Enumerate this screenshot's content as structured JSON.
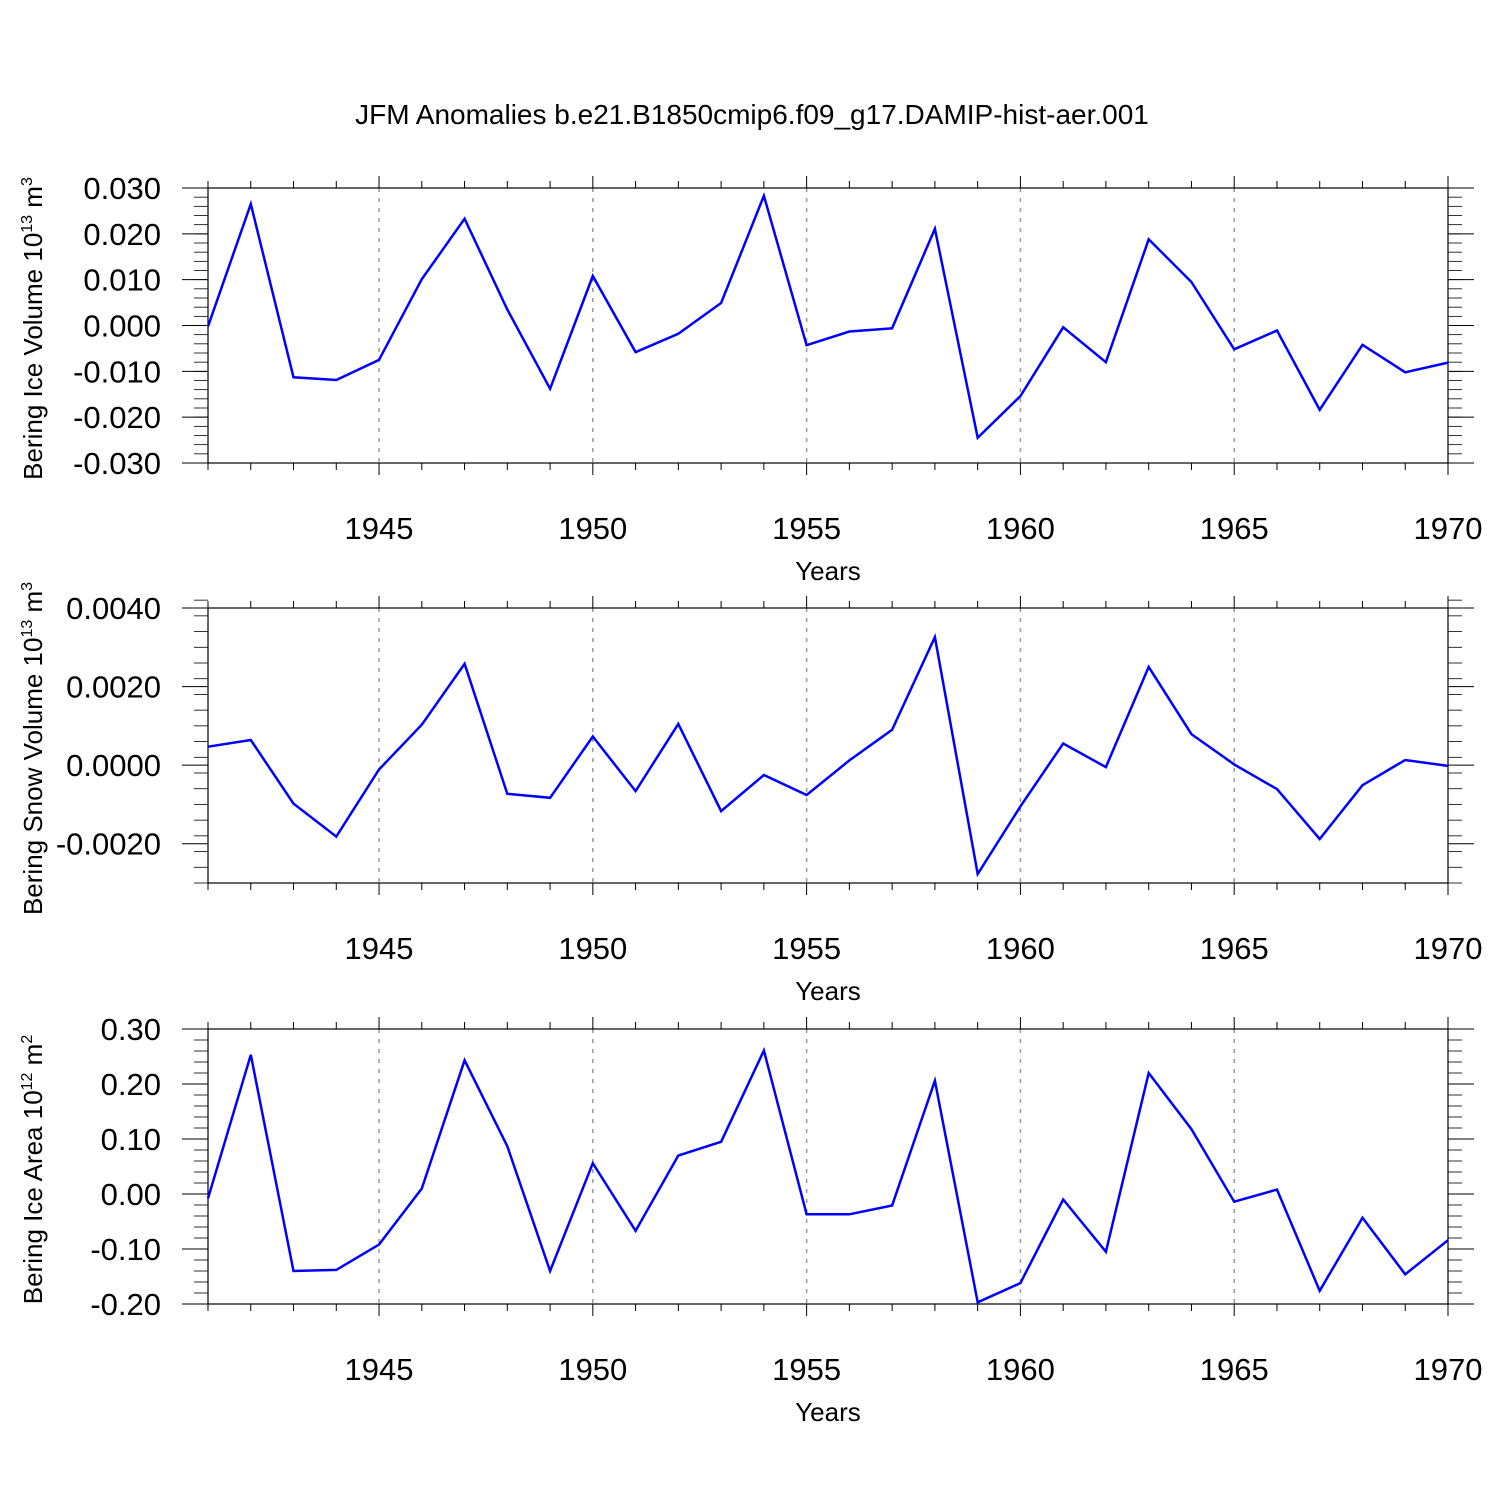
{
  "title": "JFM Anomalies b.e21.B1850cmip6.f09_g17.DAMIP-hist-aer.001",
  "line_color": "#0000ff",
  "grid_color": "#999999",
  "chart_data": [
    {
      "type": "line",
      "ylabel_main": "Bering Ice Volume 10",
      "ylabel_sup": "13",
      "ylabel_unit": " m",
      "ylabel_unit_sup": "3",
      "xlabel": "Years",
      "xlim": [
        1941,
        1970
      ],
      "ylim": [
        -0.03,
        0.03
      ],
      "yticks": [
        -0.03,
        -0.02,
        -0.01,
        0.0,
        0.01,
        0.02,
        0.03
      ],
      "ytick_labels": [
        "-0.030",
        "-0.020",
        "-0.010",
        "0.000",
        "0.010",
        "0.020",
        "0.030"
      ],
      "yminor_step": 0.002,
      "xticks": [
        1945,
        1950,
        1955,
        1960,
        1965,
        1970
      ],
      "xtick_labels": [
        "1945",
        "1950",
        "1955",
        "1960",
        "1965",
        "1970"
      ],
      "x": [
        1941,
        1942,
        1943,
        1944,
        1945,
        1946,
        1947,
        1948,
        1949,
        1950,
        1951,
        1952,
        1953,
        1954,
        1955,
        1956,
        1957,
        1958,
        1959,
        1960,
        1961,
        1962,
        1963,
        1964,
        1965,
        1966,
        1967,
        1968,
        1969,
        1970
      ],
      "values": [
        -0.0002,
        0.0265,
        -0.0113,
        -0.0119,
        -0.0075,
        0.0101,
        0.0233,
        0.0035,
        -0.0138,
        0.0108,
        -0.0058,
        -0.0018,
        0.0049,
        0.0283,
        -0.0043,
        -0.0013,
        -0.0006,
        0.0211,
        -0.0245,
        -0.0154,
        -0.0004,
        -0.008,
        0.0188,
        0.0095,
        -0.0052,
        -0.0011,
        -0.0184,
        -0.0042,
        -0.0102,
        -0.0081
      ]
    },
    {
      "type": "line",
      "ylabel_main": "Bering Snow Volume 10",
      "ylabel_sup": "13",
      "ylabel_unit": " m",
      "ylabel_unit_sup": "3",
      "xlabel": "Years",
      "xlim": [
        1941,
        1970
      ],
      "ylim": [
        -0.003,
        0.004
      ],
      "yticks": [
        -0.002,
        0.0,
        0.002,
        0.004
      ],
      "ytick_labels": [
        "-0.0020",
        "0.0000",
        "0.0020",
        "0.0040"
      ],
      "yminor_step": 0.0004,
      "xticks": [
        1945,
        1950,
        1955,
        1960,
        1965,
        1970
      ],
      "xtick_labels": [
        "1945",
        "1950",
        "1955",
        "1960",
        "1965",
        "1970"
      ],
      "x": [
        1941,
        1942,
        1943,
        1944,
        1945,
        1946,
        1947,
        1948,
        1949,
        1950,
        1951,
        1952,
        1953,
        1954,
        1955,
        1956,
        1957,
        1958,
        1959,
        1960,
        1961,
        1962,
        1963,
        1964,
        1965,
        1966,
        1967,
        1968,
        1969,
        1970
      ],
      "values": [
        0.00047,
        0.00064,
        -0.00098,
        -0.00182,
        -0.00011,
        0.00103,
        0.00258,
        -0.00073,
        -0.00083,
        0.00073,
        -0.00066,
        0.00105,
        -0.00117,
        -0.00025,
        -0.00076,
        0.00012,
        0.0009,
        0.00326,
        -0.00277,
        -0.00105,
        0.00055,
        -5e-05,
        0.0025,
        0.00079,
        2e-05,
        -0.00061,
        -0.00188,
        -0.00051,
        0.00013,
        -2e-05
      ]
    },
    {
      "type": "line",
      "ylabel_main": "Bering Ice Area 10",
      "ylabel_sup": "12",
      "ylabel_unit": " m",
      "ylabel_unit_sup": "2",
      "xlabel": "Years",
      "xlim": [
        1941,
        1970
      ],
      "ylim": [
        -0.2,
        0.3
      ],
      "yticks": [
        -0.2,
        -0.1,
        0.0,
        0.1,
        0.2,
        0.3
      ],
      "ytick_labels": [
        "-0.20",
        "-0.10",
        "0.00",
        "0.10",
        "0.20",
        "0.30"
      ],
      "yminor_step": 0.02,
      "xticks": [
        1945,
        1950,
        1955,
        1960,
        1965,
        1970
      ],
      "xtick_labels": [
        "1945",
        "1950",
        "1955",
        "1960",
        "1965",
        "1970"
      ],
      "x": [
        1941,
        1942,
        1943,
        1944,
        1945,
        1946,
        1947,
        1948,
        1949,
        1950,
        1951,
        1952,
        1953,
        1954,
        1955,
        1956,
        1957,
        1958,
        1959,
        1960,
        1961,
        1962,
        1963,
        1964,
        1965,
        1966,
        1967,
        1968,
        1969,
        1970
      ],
      "values": [
        -0.008,
        0.253,
        -0.14,
        -0.138,
        -0.092,
        0.01,
        0.243,
        0.087,
        -0.14,
        0.056,
        -0.067,
        0.07,
        0.095,
        0.261,
        -0.037,
        -0.037,
        -0.021,
        0.206,
        -0.197,
        -0.162,
        -0.01,
        -0.105,
        0.22,
        0.118,
        -0.014,
        0.008,
        -0.176,
        -0.043,
        -0.146,
        -0.084
      ]
    }
  ]
}
